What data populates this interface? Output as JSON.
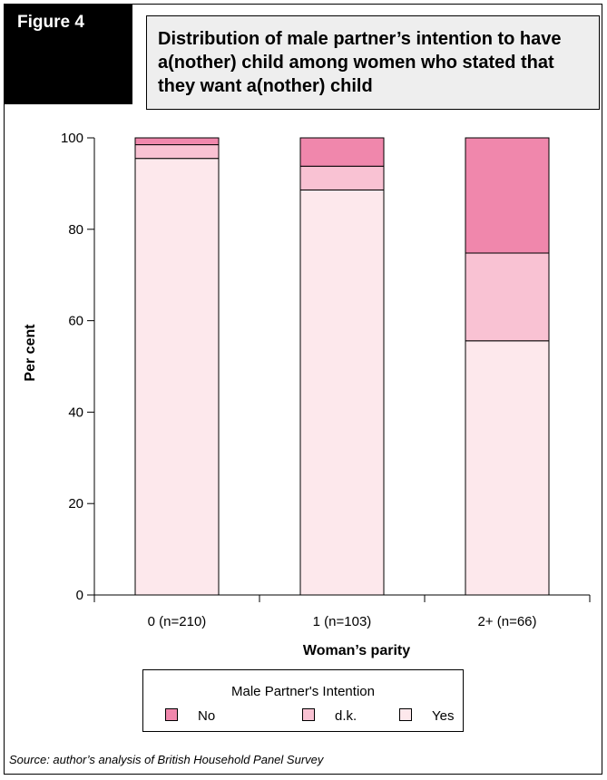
{
  "figure_label": "Figure 4",
  "title": "Distribution of male partner’s intention to have a(nother) child among women who stated that they want a(nother) child",
  "source": "Source: author’s analysis of British Household Panel Survey",
  "chart_data": {
    "type": "bar",
    "stacked": true,
    "categories": [
      "0 (n=210)",
      "1 (n=103)",
      "2+ (n=66)"
    ],
    "series": [
      {
        "name": "Yes",
        "values": [
          95.5,
          88.6,
          55.6
        ],
        "color": "#fde8ec"
      },
      {
        "name": "d.k.",
        "values": [
          3.0,
          5.2,
          19.2
        ],
        "color": "#f9c2d3"
      },
      {
        "name": "No",
        "values": [
          1.5,
          6.2,
          25.2
        ],
        "color": "#f087ac"
      }
    ],
    "xlabel": "Woman’s parity",
    "ylabel": "Per cent",
    "ylim": [
      0,
      100
    ],
    "yticks": [
      0,
      20,
      40,
      60,
      80,
      100
    ],
    "grid": false,
    "legend": {
      "title": "Male Partner's Intention",
      "placement": "bottom",
      "order": [
        "No",
        "d.k.",
        "Yes"
      ]
    }
  }
}
